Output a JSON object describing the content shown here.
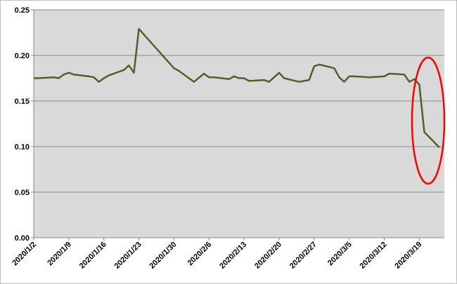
{
  "chart_data": {
    "type": "line",
    "x": [
      "2020/1/2",
      "2020/1/3",
      "2020/1/6",
      "2020/1/7",
      "2020/1/8",
      "2020/1/9",
      "2020/1/10",
      "2020/1/13",
      "2020/1/14",
      "2020/1/15",
      "2020/1/16",
      "2020/1/17",
      "2020/1/20",
      "2020/1/21",
      "2020/1/22",
      "2020/1/23",
      "2020/1/30",
      "2020/1/31",
      "2020/2/3",
      "2020/2/5",
      "2020/2/6",
      "2020/2/7",
      "2020/2/10",
      "2020/2/11",
      "2020/2/12",
      "2020/2/13",
      "2020/2/14",
      "2020/2/17",
      "2020/2/18",
      "2020/2/20",
      "2020/2/21",
      "2020/2/24",
      "2020/2/25",
      "2020/2/26",
      "2020/2/27",
      "2020/2/28",
      "2020/3/2",
      "2020/3/3",
      "2020/3/4",
      "2020/3/5",
      "2020/3/6",
      "2020/3/9",
      "2020/3/12",
      "2020/3/13",
      "2020/3/16",
      "2020/3/17",
      "2020/3/18",
      "2020/3/19",
      "2020/3/20",
      "2020/3/23"
    ],
    "series": [
      {
        "color": "#4f6228",
        "values": [
          0.175,
          0.175,
          0.176,
          0.175,
          0.179,
          0.181,
          0.179,
          0.177,
          0.176,
          0.171,
          0.175,
          0.178,
          0.184,
          0.189,
          0.181,
          0.229,
          0.186,
          0.183,
          0.171,
          0.18,
          0.176,
          0.176,
          0.174,
          0.177,
          0.175,
          0.175,
          0.172,
          0.173,
          0.171,
          0.181,
          0.175,
          0.171,
          0.172,
          0.173,
          0.188,
          0.19,
          0.186,
          0.176,
          0.171,
          0.177,
          0.177,
          0.176,
          0.177,
          0.18,
          0.179,
          0.171,
          0.174,
          0.168,
          0.116,
          0.099
        ]
      }
    ],
    "xlim": [
      "2020/1/2",
      "2020/3/24"
    ],
    "xticks": [
      "2020/1/2",
      "2020/1/9",
      "2020/1/16",
      "2020/1/23",
      "2020/1/30",
      "2020/2/6",
      "2020/2/13",
      "2020/2/20",
      "2020/2/27",
      "2020/3/5",
      "2020/3/12",
      "2020/3/19"
    ],
    "ylim": [
      0,
      0.25
    ],
    "yticks": [
      {
        "value": 0,
        "label": "0.00"
      },
      {
        "value": 0.05,
        "label": "0.05"
      },
      {
        "value": 0.1,
        "label": "0.10"
      },
      {
        "value": 0.15,
        "label": "0.15"
      },
      {
        "value": 0.2,
        "label": "0.20"
      },
      {
        "value": 0.25,
        "label": "0.25"
      }
    ],
    "grid": true
  }
}
